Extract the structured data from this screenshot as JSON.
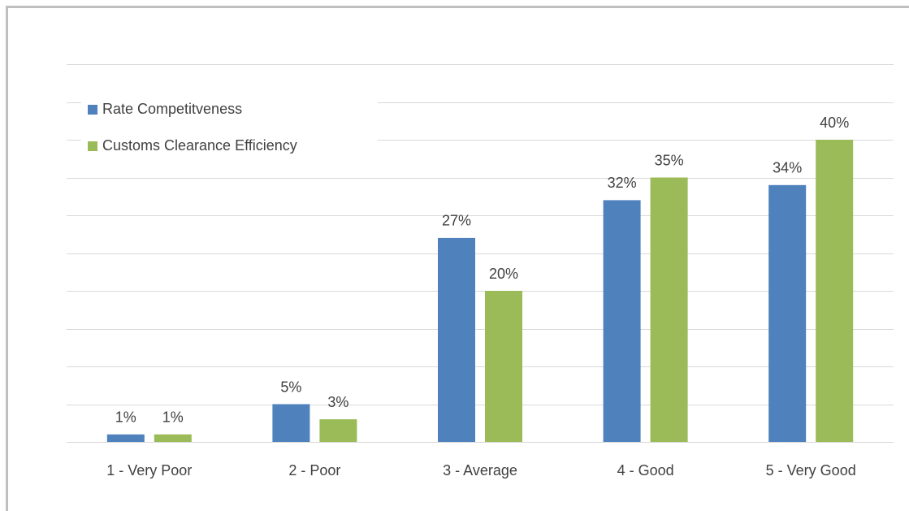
{
  "chart_data": {
    "type": "bar",
    "categories": [
      "1 - Very Poor",
      "2 - Poor",
      "3 - Average",
      "4 - Good",
      "5 - Very Good"
    ],
    "series": [
      {
        "name": "Rate Competitveness",
        "color": "#4f81bd",
        "values": [
          1,
          5,
          27,
          32,
          34
        ],
        "value_labels": [
          "1%",
          "5%",
          "27%",
          "32%",
          "34%"
        ]
      },
      {
        "name": "Customs Clearance Efficiency",
        "color": "#9bbb59",
        "values": [
          1,
          3,
          20,
          35,
          40
        ],
        "value_labels": [
          "1%",
          "3%",
          "20%",
          "35%",
          "40%"
        ]
      }
    ],
    "ylim": [
      0,
      50
    ],
    "yticks": [
      0,
      5,
      10,
      15,
      20,
      25,
      30,
      35,
      40,
      45,
      50
    ],
    "grid": true,
    "legend": "top-left"
  }
}
